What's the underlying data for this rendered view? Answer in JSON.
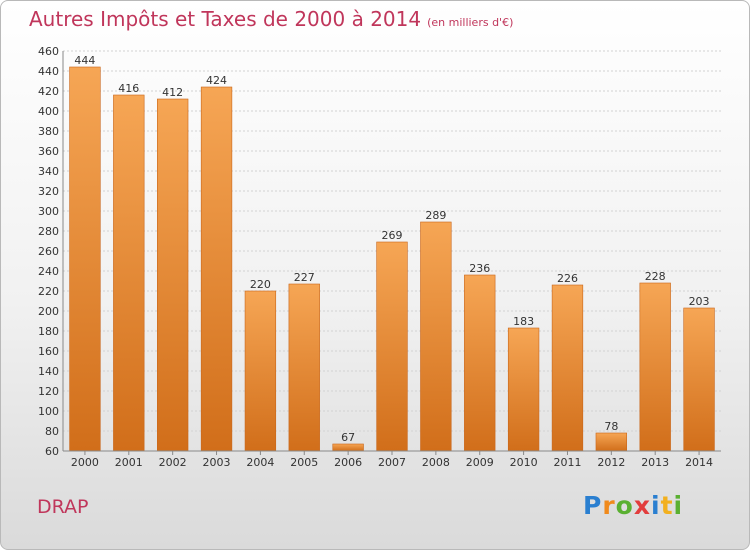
{
  "title": "Autres Impôts et Taxes de 2000 à 2014",
  "unit": "(en milliers d'€)",
  "place": "DRAP",
  "logo": "Proxiti",
  "colors": {
    "title": "#c0365b",
    "bar_top": "#f6a655",
    "bar_bottom": "#d16e1a"
  },
  "chart_data": {
    "type": "bar",
    "title": "Autres Impôts et Taxes de 2000 à 2014",
    "subtitle": "(en milliers d'€)",
    "categories": [
      "2000",
      "2001",
      "2002",
      "2003",
      "2004",
      "2005",
      "2006",
      "2007",
      "2008",
      "2009",
      "2010",
      "2011",
      "2012",
      "2013",
      "2014"
    ],
    "values": [
      444,
      416,
      412,
      424,
      220,
      227,
      67,
      269,
      289,
      236,
      183,
      226,
      78,
      228,
      203
    ],
    "ylim": [
      60,
      460
    ],
    "yticks": [
      60,
      80,
      100,
      120,
      140,
      160,
      180,
      200,
      220,
      240,
      260,
      280,
      300,
      320,
      340,
      360,
      380,
      400,
      420,
      440,
      460
    ],
    "grid": true,
    "xlabel": "",
    "ylabel": ""
  }
}
